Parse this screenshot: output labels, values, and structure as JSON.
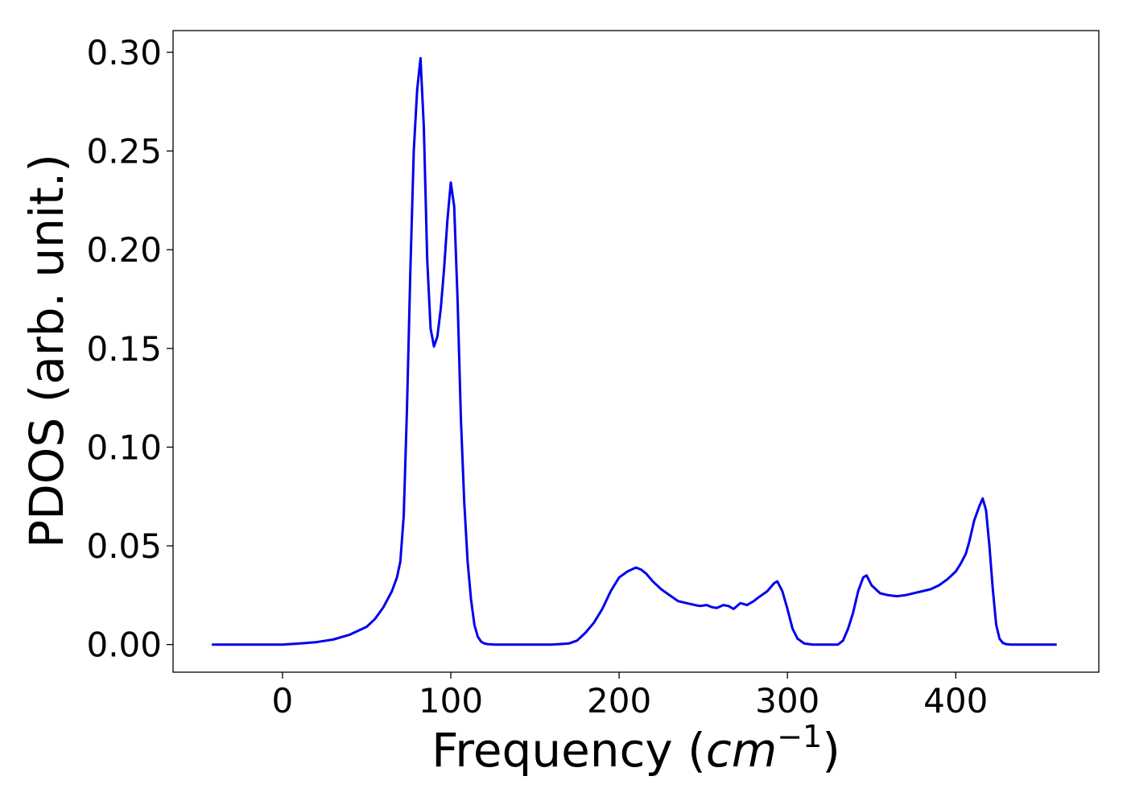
{
  "chart_data": {
    "type": "line",
    "title": "",
    "xlabel": "Frequency (",
    "xlabel_var": "cm",
    "xlabel_exp": "−1",
    "xlabel_close": ")",
    "ylabel": "PDOS (arb. unit.)",
    "xlim": [
      -65,
      485
    ],
    "ylim": [
      -0.014,
      0.311
    ],
    "xticks": [
      0,
      100,
      200,
      300,
      400
    ],
    "xtick_labels": [
      "0",
      "100",
      "200",
      "300",
      "400"
    ],
    "yticks": [
      0.0,
      0.05,
      0.1,
      0.15,
      0.2,
      0.25,
      0.3
    ],
    "ytick_labels": [
      "0.00",
      "0.05",
      "0.10",
      "0.15",
      "0.20",
      "0.25",
      "0.30"
    ],
    "grid": false,
    "legend": "none",
    "line_color": "#0000ee",
    "series": [
      {
        "x": [
          -42,
          0,
          10,
          20,
          30,
          40,
          50,
          55,
          60,
          65,
          68,
          70,
          72,
          74,
          76,
          78,
          80,
          82,
          84,
          86,
          88,
          90,
          92,
          94,
          96,
          98,
          100,
          102,
          104,
          106,
          108,
          110,
          112,
          114,
          116,
          118,
          120,
          122,
          124,
          126,
          128,
          130,
          135,
          140,
          150,
          160,
          170,
          175,
          180,
          185,
          190,
          195,
          200,
          205,
          210,
          213,
          216,
          220,
          225,
          230,
          235,
          240,
          245,
          248,
          252,
          255,
          258,
          262,
          265,
          268,
          272,
          276,
          280,
          283,
          288,
          292,
          294,
          297,
          300,
          303,
          306,
          310,
          315,
          320,
          330,
          333,
          336,
          339,
          342,
          345,
          347,
          350,
          355,
          360,
          365,
          370,
          375,
          380,
          385,
          390,
          395,
          400,
          403,
          406,
          408,
          411,
          414,
          416,
          418,
          420,
          422,
          424,
          426,
          428,
          430,
          433,
          436,
          440,
          460
        ],
        "y": [
          0.0,
          0.0,
          0.0005,
          0.0012,
          0.0025,
          0.005,
          0.009,
          0.013,
          0.019,
          0.027,
          0.034,
          0.042,
          0.065,
          0.12,
          0.19,
          0.25,
          0.281,
          0.297,
          0.262,
          0.195,
          0.16,
          0.151,
          0.156,
          0.17,
          0.19,
          0.215,
          0.234,
          0.222,
          0.175,
          0.115,
          0.072,
          0.042,
          0.023,
          0.01,
          0.004,
          0.0015,
          0.0005,
          0.0002,
          0.0001,
          0.0,
          0.0,
          0.0,
          0.0,
          0.0,
          0.0,
          0.0,
          0.0005,
          0.002,
          0.006,
          0.011,
          0.018,
          0.027,
          0.034,
          0.037,
          0.039,
          0.038,
          0.036,
          0.032,
          0.028,
          0.025,
          0.022,
          0.021,
          0.02,
          0.0195,
          0.02,
          0.019,
          0.0185,
          0.02,
          0.0195,
          0.018,
          0.021,
          0.02,
          0.022,
          0.024,
          0.027,
          0.031,
          0.032,
          0.027,
          0.018,
          0.008,
          0.003,
          0.0005,
          0.0,
          0.0,
          0.0,
          0.002,
          0.008,
          0.016,
          0.027,
          0.034,
          0.035,
          0.03,
          0.026,
          0.025,
          0.0245,
          0.025,
          0.026,
          0.027,
          0.028,
          0.03,
          0.033,
          0.037,
          0.041,
          0.046,
          0.052,
          0.063,
          0.07,
          0.074,
          0.068,
          0.05,
          0.028,
          0.01,
          0.003,
          0.0008,
          0.0002,
          0.0,
          0.0,
          0.0,
          0.0
        ]
      }
    ]
  }
}
